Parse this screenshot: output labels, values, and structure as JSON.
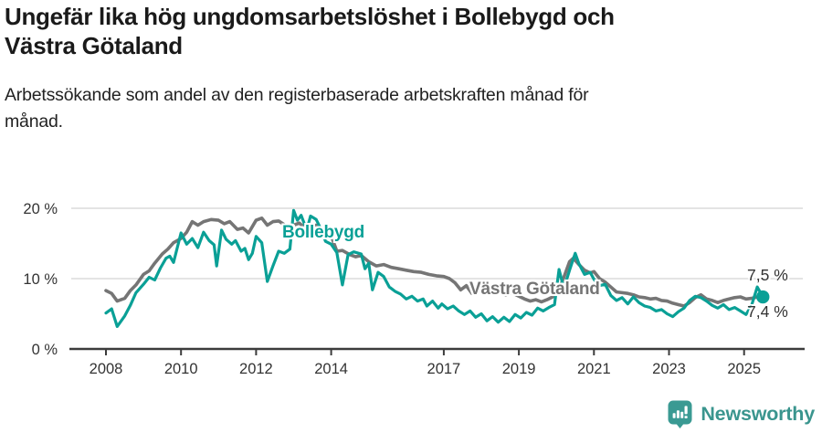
{
  "header": {
    "title": "Ungefär lika hög ungdomsarbetslöshet i Bollebygd och\nVästra Götaland",
    "subtitle": "Arbetssökande som andel av den registerbaserade arbetskraften månad för\nmånad."
  },
  "chart_data": {
    "type": "line",
    "unit": "%",
    "grid": true,
    "legend_position": "inline-labels",
    "ylim": [
      0,
      21.5
    ],
    "xlim": [
      2008,
      2025.6
    ],
    "yticks": [
      {
        "value": 0,
        "label": "0 %"
      },
      {
        "value": 10,
        "label": "10 %"
      },
      {
        "value": 20,
        "label": "20 %"
      }
    ],
    "xticks": [
      {
        "value": 2008,
        "label": "2008"
      },
      {
        "value": 2010,
        "label": "2010"
      },
      {
        "value": 2012,
        "label": "2012"
      },
      {
        "value": 2014,
        "label": "2014"
      },
      {
        "value": 2017,
        "label": "2017"
      },
      {
        "value": 2019,
        "label": "2019"
      },
      {
        "value": 2021,
        "label": "2021"
      },
      {
        "value": 2023,
        "label": "2023"
      },
      {
        "value": 2025,
        "label": "2025"
      }
    ],
    "series": [
      {
        "name": "Västra Götaland",
        "color": "#757575",
        "line_width": 3.6,
        "end_label": "7,5 %",
        "end_dot": false,
        "points": [
          [
            2008.0,
            8.3
          ],
          [
            2008.15,
            7.9
          ],
          [
            2008.3,
            6.8
          ],
          [
            2008.5,
            7.2
          ],
          [
            2008.65,
            8.3
          ],
          [
            2008.8,
            9.1
          ],
          [
            2009.0,
            10.6
          ],
          [
            2009.15,
            11.1
          ],
          [
            2009.3,
            12.2
          ],
          [
            2009.5,
            13.5
          ],
          [
            2009.65,
            14.2
          ],
          [
            2009.8,
            15.1
          ],
          [
            2010.0,
            15.7
          ],
          [
            2010.15,
            16.6
          ],
          [
            2010.3,
            18.1
          ],
          [
            2010.45,
            17.6
          ],
          [
            2010.6,
            18.1
          ],
          [
            2010.8,
            18.4
          ],
          [
            2011.0,
            18.3
          ],
          [
            2011.15,
            17.8
          ],
          [
            2011.3,
            18.1
          ],
          [
            2011.5,
            17.0
          ],
          [
            2011.65,
            17.2
          ],
          [
            2011.8,
            16.5
          ],
          [
            2012.0,
            18.3
          ],
          [
            2012.15,
            18.6
          ],
          [
            2012.3,
            17.6
          ],
          [
            2012.45,
            18.1
          ],
          [
            2012.6,
            18.2
          ],
          [
            2012.8,
            17.5
          ],
          [
            2013.0,
            17.6
          ],
          [
            2013.15,
            17.9
          ],
          [
            2013.3,
            17.2
          ],
          [
            2013.45,
            17.4
          ],
          [
            2013.6,
            17.6
          ],
          [
            2013.8,
            16.9
          ],
          [
            2014.0,
            16.1
          ],
          [
            2014.15,
            13.9
          ],
          [
            2014.3,
            14.0
          ],
          [
            2014.5,
            13.4
          ],
          [
            2014.65,
            13.1
          ],
          [
            2014.8,
            13.3
          ],
          [
            2015.0,
            12.4
          ],
          [
            2015.2,
            11.8
          ],
          [
            2015.4,
            12.0
          ],
          [
            2015.6,
            11.6
          ],
          [
            2015.8,
            11.4
          ],
          [
            2016.0,
            11.2
          ],
          [
            2016.2,
            11.0
          ],
          [
            2016.4,
            10.9
          ],
          [
            2016.6,
            10.6
          ],
          [
            2016.8,
            10.4
          ],
          [
            2017.0,
            10.3
          ],
          [
            2017.15,
            10.0
          ],
          [
            2017.3,
            9.4
          ],
          [
            2017.45,
            8.4
          ],
          [
            2017.6,
            9.0
          ],
          [
            2017.75,
            7.9
          ],
          [
            2017.9,
            8.4
          ],
          [
            2018.05,
            8.0
          ],
          [
            2018.2,
            8.4
          ],
          [
            2018.35,
            7.9
          ],
          [
            2018.5,
            8.2
          ],
          [
            2018.65,
            7.7
          ],
          [
            2018.8,
            8.0
          ],
          [
            2019.0,
            7.5
          ],
          [
            2019.15,
            7.1
          ],
          [
            2019.3,
            6.8
          ],
          [
            2019.45,
            7.0
          ],
          [
            2019.6,
            6.7
          ],
          [
            2019.75,
            7.0
          ],
          [
            2019.9,
            7.4
          ],
          [
            2020.05,
            8.2
          ],
          [
            2020.2,
            10.2
          ],
          [
            2020.35,
            12.4
          ],
          [
            2020.45,
            12.9
          ],
          [
            2020.6,
            12.0
          ],
          [
            2020.75,
            11.2
          ],
          [
            2020.9,
            10.8
          ],
          [
            2021.0,
            11.0
          ],
          [
            2021.15,
            10.0
          ],
          [
            2021.3,
            9.5
          ],
          [
            2021.45,
            8.8
          ],
          [
            2021.6,
            8.1
          ],
          [
            2021.75,
            8.0
          ],
          [
            2021.9,
            7.9
          ],
          [
            2022.05,
            7.7
          ],
          [
            2022.2,
            7.4
          ],
          [
            2022.35,
            7.3
          ],
          [
            2022.5,
            7.1
          ],
          [
            2022.65,
            7.2
          ],
          [
            2022.8,
            6.9
          ],
          [
            2022.95,
            6.8
          ],
          [
            2023.1,
            6.5
          ],
          [
            2023.25,
            6.3
          ],
          [
            2023.4,
            6.1
          ],
          [
            2023.55,
            6.6
          ],
          [
            2023.7,
            7.3
          ],
          [
            2023.85,
            7.7
          ],
          [
            2024.0,
            7.1
          ],
          [
            2024.15,
            6.9
          ],
          [
            2024.3,
            6.6
          ],
          [
            2024.45,
            6.9
          ],
          [
            2024.6,
            7.1
          ],
          [
            2024.75,
            7.3
          ],
          [
            2024.9,
            7.4
          ],
          [
            2025.05,
            7.1
          ],
          [
            2025.2,
            7.2
          ],
          [
            2025.35,
            7.4
          ],
          [
            2025.5,
            7.5
          ]
        ]
      },
      {
        "name": "Bollebygd",
        "color": "#0aa096",
        "line_width": 3.2,
        "end_label": "7,4 %",
        "end_dot": true,
        "points": [
          [
            2008.0,
            5.1
          ],
          [
            2008.15,
            5.7
          ],
          [
            2008.3,
            3.2
          ],
          [
            2008.5,
            4.7
          ],
          [
            2008.65,
            6.2
          ],
          [
            2008.8,
            8.0
          ],
          [
            2009.0,
            9.2
          ],
          [
            2009.15,
            10.2
          ],
          [
            2009.3,
            9.8
          ],
          [
            2009.45,
            11.5
          ],
          [
            2009.6,
            12.9
          ],
          [
            2009.7,
            13.2
          ],
          [
            2009.8,
            12.3
          ],
          [
            2009.9,
            14.4
          ],
          [
            2010.0,
            16.5
          ],
          [
            2010.15,
            14.9
          ],
          [
            2010.3,
            15.7
          ],
          [
            2010.45,
            14.4
          ],
          [
            2010.6,
            16.6
          ],
          [
            2010.75,
            15.4
          ],
          [
            2010.88,
            14.8
          ],
          [
            2010.95,
            11.8
          ],
          [
            2011.08,
            16.9
          ],
          [
            2011.2,
            15.6
          ],
          [
            2011.35,
            14.9
          ],
          [
            2011.45,
            15.4
          ],
          [
            2011.6,
            13.9
          ],
          [
            2011.7,
            14.3
          ],
          [
            2011.8,
            12.7
          ],
          [
            2011.9,
            13.6
          ],
          [
            2012.0,
            16.0
          ],
          [
            2012.15,
            15.1
          ],
          [
            2012.3,
            9.6
          ],
          [
            2012.45,
            11.8
          ],
          [
            2012.6,
            13.9
          ],
          [
            2012.75,
            13.6
          ],
          [
            2012.9,
            14.2
          ],
          [
            2013.0,
            19.7
          ],
          [
            2013.1,
            18.3
          ],
          [
            2013.2,
            19.0
          ],
          [
            2013.35,
            16.9
          ],
          [
            2013.45,
            18.9
          ],
          [
            2013.6,
            18.4
          ],
          [
            2013.75,
            16.8
          ],
          [
            2013.85,
            15.3
          ],
          [
            2014.0,
            14.9
          ],
          [
            2014.15,
            13.7
          ],
          [
            2014.3,
            9.1
          ],
          [
            2014.45,
            13.4
          ],
          [
            2014.6,
            13.8
          ],
          [
            2014.8,
            13.5
          ],
          [
            2014.9,
            11.4
          ],
          [
            2015.0,
            12.2
          ],
          [
            2015.1,
            8.4
          ],
          [
            2015.25,
            10.9
          ],
          [
            2015.4,
            10.3
          ],
          [
            2015.55,
            8.8
          ],
          [
            2015.7,
            8.2
          ],
          [
            2015.85,
            7.8
          ],
          [
            2016.0,
            7.1
          ],
          [
            2016.15,
            7.5
          ],
          [
            2016.3,
            6.8
          ],
          [
            2016.45,
            7.1
          ],
          [
            2016.55,
            6.1
          ],
          [
            2016.7,
            6.8
          ],
          [
            2016.85,
            5.8
          ],
          [
            2016.95,
            6.4
          ],
          [
            2017.1,
            5.7
          ],
          [
            2017.25,
            6.1
          ],
          [
            2017.4,
            5.4
          ],
          [
            2017.55,
            4.9
          ],
          [
            2017.7,
            5.4
          ],
          [
            2017.85,
            4.5
          ],
          [
            2018.0,
            5.0
          ],
          [
            2018.15,
            4.0
          ],
          [
            2018.3,
            4.6
          ],
          [
            2018.45,
            3.8
          ],
          [
            2018.6,
            4.5
          ],
          [
            2018.75,
            3.9
          ],
          [
            2018.9,
            4.9
          ],
          [
            2019.05,
            4.4
          ],
          [
            2019.2,
            5.2
          ],
          [
            2019.35,
            4.8
          ],
          [
            2019.5,
            5.8
          ],
          [
            2019.65,
            5.4
          ],
          [
            2019.8,
            5.9
          ],
          [
            2019.95,
            6.3
          ],
          [
            2020.07,
            11.3
          ],
          [
            2020.2,
            8.6
          ],
          [
            2020.35,
            11.2
          ],
          [
            2020.5,
            13.6
          ],
          [
            2020.6,
            12.1
          ],
          [
            2020.75,
            10.6
          ],
          [
            2020.9,
            10.9
          ],
          [
            2021.0,
            9.9
          ],
          [
            2021.15,
            9.0
          ],
          [
            2021.3,
            9.2
          ],
          [
            2021.45,
            7.6
          ],
          [
            2021.6,
            6.9
          ],
          [
            2021.75,
            7.3
          ],
          [
            2021.9,
            6.4
          ],
          [
            2022.05,
            7.4
          ],
          [
            2022.2,
            6.6
          ],
          [
            2022.35,
            6.1
          ],
          [
            2022.5,
            5.9
          ],
          [
            2022.65,
            5.4
          ],
          [
            2022.8,
            5.6
          ],
          [
            2022.95,
            5.0
          ],
          [
            2023.1,
            4.6
          ],
          [
            2023.25,
            5.3
          ],
          [
            2023.4,
            5.8
          ],
          [
            2023.55,
            6.9
          ],
          [
            2023.7,
            7.5
          ],
          [
            2023.85,
            7.3
          ],
          [
            2024.0,
            6.8
          ],
          [
            2024.15,
            6.2
          ],
          [
            2024.3,
            5.8
          ],
          [
            2024.45,
            6.3
          ],
          [
            2024.6,
            5.6
          ],
          [
            2024.75,
            5.9
          ],
          [
            2024.9,
            5.4
          ],
          [
            2025.05,
            4.9
          ],
          [
            2025.2,
            6.2
          ],
          [
            2025.35,
            8.8
          ],
          [
            2025.5,
            7.4
          ]
        ]
      }
    ],
    "colors": {
      "bollebygd": "#0aa096",
      "vastra_gotaland": "#757575",
      "gridline": "#dcdcdc",
      "axis": "#3c3c3c",
      "tick_text": "#333333"
    }
  },
  "footer": {
    "brand": "Newsworthy"
  }
}
